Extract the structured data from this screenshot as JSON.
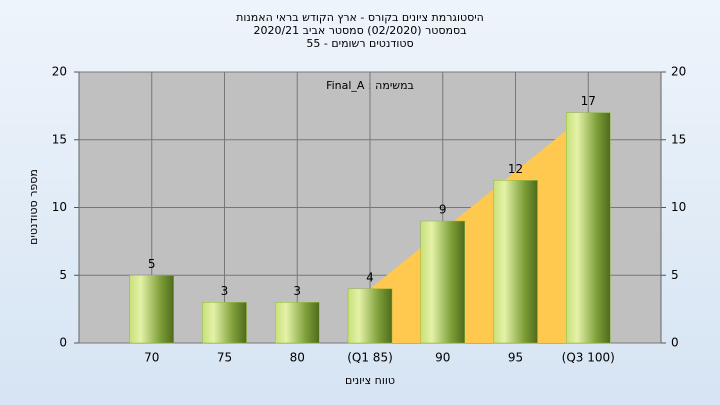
{
  "chart_data": {
    "type": "bar",
    "title": [
      "היסטוגרמת ציונים בקורס - ארץ הקודש בראי האמנות",
      "בסמסטר  (02/2020)  סמסטר אביב  2020/21",
      "סטודנטים רשומים - 55"
    ],
    "annotation": "במשימה : Final_A",
    "x_label": "טווח ציונים",
    "y_label": "מספר סטודנטים",
    "categories": [
      "70",
      "75",
      "80",
      "(Q1 85)",
      "90",
      "95",
      "(Q3 100)"
    ],
    "values": [
      5,
      3,
      3,
      4,
      9,
      12,
      17
    ],
    "color": "#8db83a",
    "quartile_range": [
      3,
      6
    ],
    "quartile_color": "#ffc94f",
    "ylim": [
      0,
      20
    ],
    "yticks": [
      0,
      5,
      10,
      15,
      20
    ],
    "y2lim": [
      0,
      20
    ],
    "y2ticks": [
      0,
      5,
      10,
      15,
      20
    ],
    "grid": true
  }
}
